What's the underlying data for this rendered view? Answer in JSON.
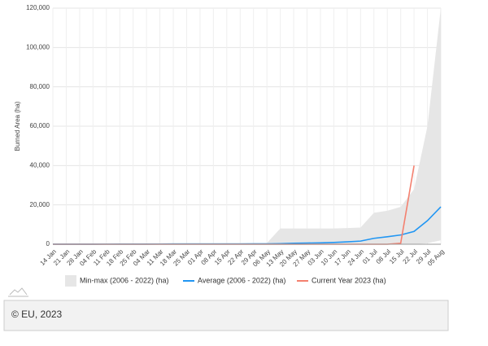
{
  "chart_data": {
    "type": "line",
    "y_label": "Burned Area (ha)",
    "categories": [
      "14 Jan",
      "21 Jan",
      "28 Jan",
      "04 Feb",
      "11 Feb",
      "18 Feb",
      "25 Feb",
      "04 Mar",
      "11 Mar",
      "18 Mar",
      "25 Mar",
      "01 Apr",
      "08 Apr",
      "15 Apr",
      "22 Apr",
      "29 Apr",
      "06 May",
      "13 May",
      "20 May",
      "27 May",
      "03 Jun",
      "10 Jun",
      "17 Jun",
      "24 Jun",
      "01 Jul",
      "08 Jul",
      "15 Jul",
      "22 Jul",
      "29 Jul",
      "05 Aug"
    ],
    "series": [
      {
        "name": "Min-max (2006 - 2022) (ha)",
        "color": "#e6e6e6",
        "kind": "range",
        "max": [
          100,
          100,
          150,
          150,
          200,
          250,
          300,
          350,
          400,
          450,
          500,
          500,
          500,
          550,
          550,
          600,
          600,
          8000,
          8000,
          8000,
          8000,
          8000,
          8200,
          8500,
          16000,
          17000,
          19000,
          28000,
          60000,
          120000
        ],
        "min": [
          0,
          0,
          0,
          0,
          0,
          0,
          0,
          0,
          0,
          0,
          0,
          0,
          0,
          0,
          0,
          0,
          0,
          0,
          0,
          0,
          0,
          0,
          0,
          0,
          0,
          0,
          0,
          0,
          500,
          2000
        ]
      },
      {
        "name": "Average (2006 - 2022) (ha)",
        "color": "#2196f3",
        "kind": "line",
        "values": [
          20,
          20,
          30,
          40,
          50,
          60,
          80,
          90,
          100,
          110,
          120,
          130,
          140,
          150,
          160,
          170,
          200,
          300,
          500,
          600,
          700,
          900,
          1200,
          1600,
          3000,
          3800,
          4700,
          6500,
          12000,
          19000
        ]
      },
      {
        "name": "Current Year 2023 (ha)",
        "color": "#f4806f",
        "kind": "line",
        "values": [
          0,
          0,
          0,
          0,
          0,
          0,
          0,
          0,
          0,
          0,
          0,
          0,
          0,
          0,
          0,
          0,
          0,
          0,
          0,
          0,
          0,
          0,
          0,
          0,
          0,
          0,
          500,
          40000,
          null,
          null
        ]
      }
    ],
    "ylim": [
      0,
      120000
    ],
    "yticks": [
      0,
      {
        "value": 20000,
        "label": "20,000"
      },
      {
        "value": 40000,
        "label": "40,000"
      },
      {
        "value": 60000,
        "label": "60,000"
      },
      {
        "value": 80000,
        "label": "80,000"
      },
      {
        "value": 100000,
        "label": "100,000"
      },
      {
        "value": 120000,
        "label": "120,000"
      }
    ],
    "grid": true
  },
  "footer": {
    "text": "© EU, 2023"
  }
}
